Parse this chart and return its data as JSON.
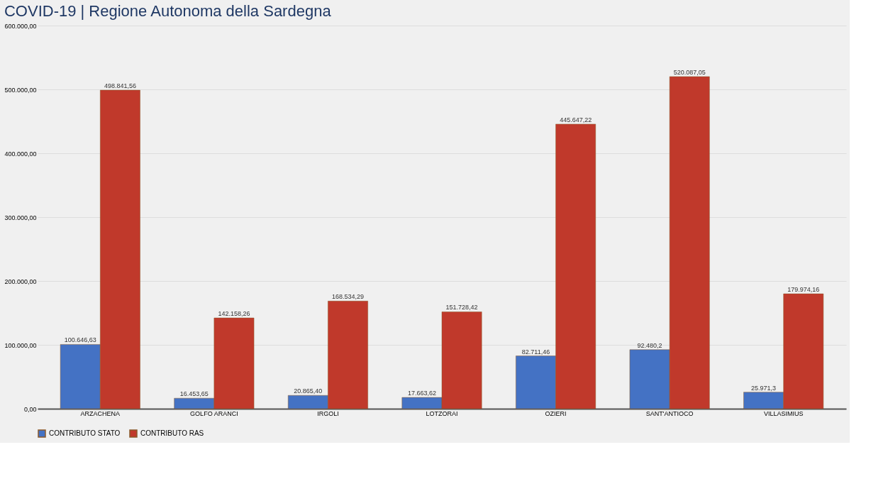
{
  "chart_data": {
    "type": "bar",
    "title": "COVID-19 | Regione Autonoma della Sardegna",
    "categories": [
      "ARZACHENA",
      "GOLFO ARANCI",
      "IRGOLI",
      "LOTZORAI",
      "OZIERI",
      "SANT'ANTIOCO",
      "VILLASIMIUS"
    ],
    "series": [
      {
        "name": "CONTRIBUTO STATO",
        "color": "#4472c4",
        "values": [
          100646.63,
          16453.65,
          20865.4,
          17663.62,
          82711.46,
          92480.2,
          25971.3
        ],
        "value_labels": [
          "100.646,63",
          "16.453,65",
          "20.865,40",
          "17.663,62",
          "82.711,46",
          "92.480,2",
          "25.971,3"
        ]
      },
      {
        "name": "CONTRIBUTO RAS",
        "color": "#c0392b",
        "values": [
          498841.56,
          142158.26,
          168534.29,
          151728.42,
          445647.22,
          520087.05,
          179974.16
        ],
        "value_labels": [
          "498.841,56",
          "142.158,26",
          "168.534,29",
          "151.728,42",
          "445.647,22",
          "520.087,05",
          "179.974,16"
        ]
      }
    ],
    "ylim": [
      0,
      600000
    ],
    "yticks": [
      {
        "value": 0,
        "label": "0,00"
      },
      {
        "value": 100000,
        "label": "100.000,00"
      },
      {
        "value": 200000,
        "label": "200.000,00"
      },
      {
        "value": 300000,
        "label": "300.000,00"
      },
      {
        "value": 400000,
        "label": "400.000,00"
      },
      {
        "value": 500000,
        "label": "500.000,00"
      },
      {
        "value": 600000,
        "label": "600.000,00"
      }
    ],
    "grid": "y",
    "legend": "bottom"
  }
}
